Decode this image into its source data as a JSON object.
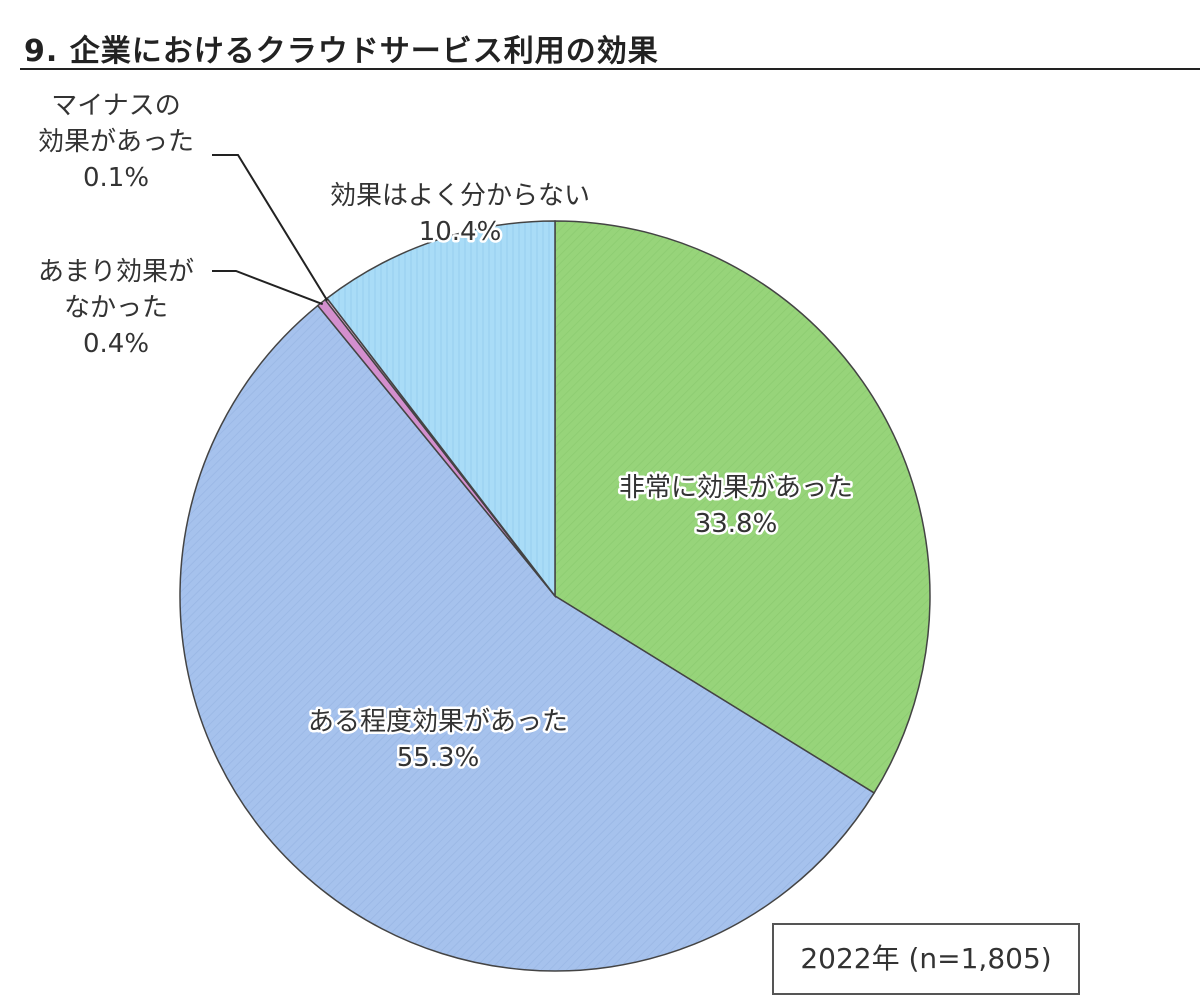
{
  "chart_data": {
    "type": "pie",
    "title": "9. 企業におけるクラウドサービス利用の効果",
    "note": "2022年 (n=1,805)",
    "slices": [
      {
        "label": [
          "非常に効果があった"
        ],
        "value": 33.8,
        "value_label": "33.8%",
        "color": "#97d47a"
      },
      {
        "label": [
          "ある程度効果があった"
        ],
        "value": 55.3,
        "value_label": "55.3%",
        "color": "#a6c2ed"
      },
      {
        "label": [
          "あまり効果が",
          "なかった"
        ],
        "value": 0.4,
        "value_label": "0.4%",
        "color": "#d38fce"
      },
      {
        "label": [
          "マイナスの",
          "効果があった"
        ],
        "value": 0.1,
        "value_label": "0.1%",
        "color": "#f2b8d8"
      },
      {
        "label": [
          "効果はよく分からない"
        ],
        "value": 10.4,
        "value_label": "10.4%",
        "color": "#a9dcf7"
      }
    ]
  }
}
